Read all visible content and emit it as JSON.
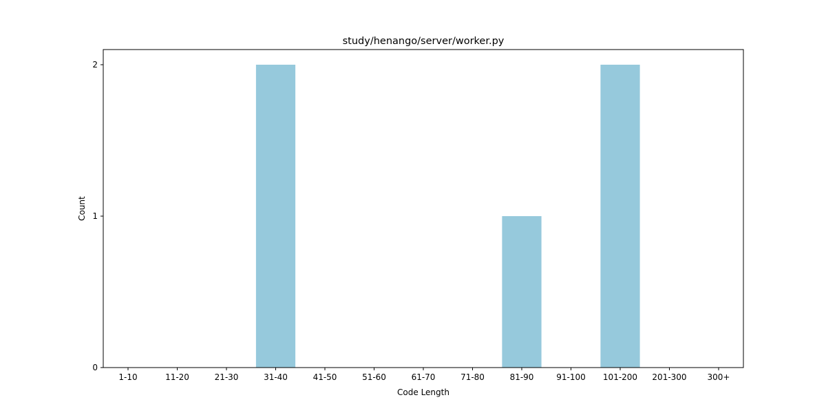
{
  "chart_data": {
    "type": "bar",
    "title": "study/henango/server/worker.py",
    "xlabel": "Code Length",
    "ylabel": "Count",
    "categories": [
      "1-10",
      "11-20",
      "21-30",
      "31-40",
      "41-50",
      "51-60",
      "61-70",
      "71-80",
      "81-90",
      "91-100",
      "101-200",
      "201-300",
      "300+"
    ],
    "values": [
      0,
      0,
      0,
      2,
      0,
      0,
      0,
      0,
      1,
      0,
      2,
      0,
      0
    ],
    "ylim": [
      0,
      2.1
    ],
    "yticks": [
      0,
      1,
      2
    ],
    "grid": false,
    "bar_color": "#96c9dc"
  }
}
